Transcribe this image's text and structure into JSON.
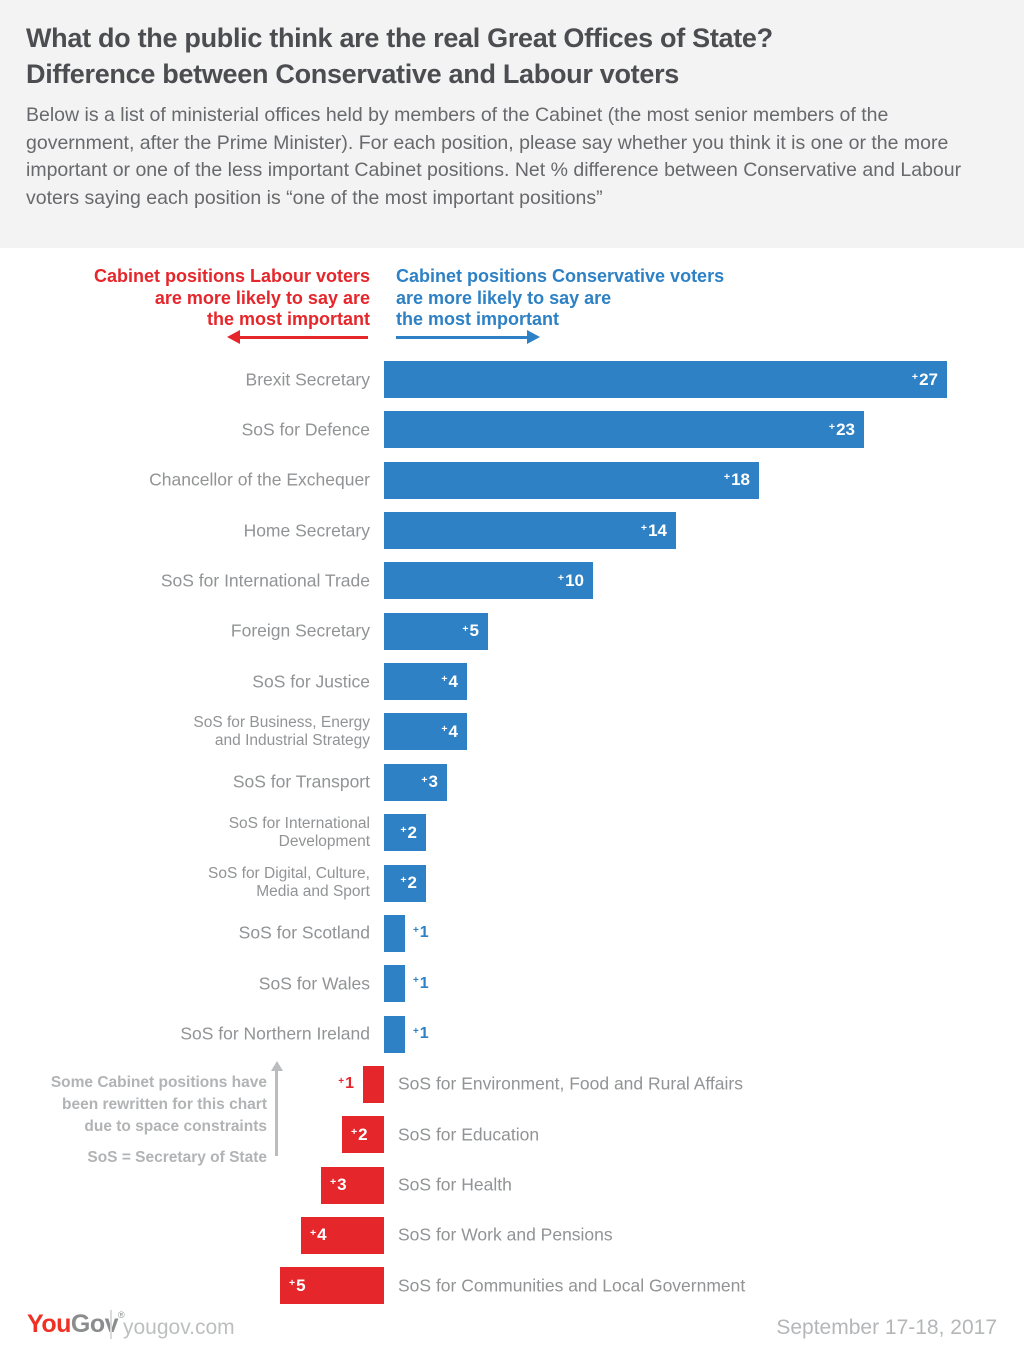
{
  "header": {
    "bg_color": "#f3f3f3",
    "title_lines": [
      "What do the public think are the real Great Offices of State?",
      "Difference between Conservative and Labour voters"
    ],
    "subtitle": "Below is a list of ministerial offices held by members of the Cabinet (the most senior members of the government, after the Prime Minister). For each position, please say whether you think it is one or the more important or one of the less important Cabinet positions. Net % difference between Conservative and Labour voters saying each position is “one of the most important positions”"
  },
  "legend": {
    "labour": {
      "lines": [
        "Cabinet positions Labour voters",
        "are more likely to say are",
        "the most important"
      ],
      "color": "#e5262b",
      "arrow_direction": "left"
    },
    "conservative": {
      "lines": [
        "Cabinet positions Conservative voters",
        "are more likely to say are",
        "the most important"
      ],
      "color": "#2d81c4",
      "arrow_direction": "right"
    }
  },
  "chart_data": {
    "type": "bar",
    "orientation": "horizontal",
    "value_prefix": "+",
    "unit": "net percentage points difference",
    "axis_baseline": 0,
    "xlim": [
      0,
      30
    ],
    "grid": false,
    "series": [
      {
        "name": "Cabinet positions Conservative voters are more likely to say are the most important",
        "color": "#2d81c4",
        "direction": "right",
        "items": [
          {
            "label_lines": [
              "Brexit Secretary"
            ],
            "value": 27
          },
          {
            "label_lines": [
              "SoS for Defence"
            ],
            "value": 23
          },
          {
            "label_lines": [
              "Chancellor of the Exchequer"
            ],
            "value": 18
          },
          {
            "label_lines": [
              "Home Secretary"
            ],
            "value": 14
          },
          {
            "label_lines": [
              "SoS for International Trade"
            ],
            "value": 10
          },
          {
            "label_lines": [
              "Foreign Secretary"
            ],
            "value": 5
          },
          {
            "label_lines": [
              "SoS for Justice"
            ],
            "value": 4
          },
          {
            "label_lines": [
              "SoS for Business, Energy",
              "and Industrial Strategy"
            ],
            "value": 4
          },
          {
            "label_lines": [
              "SoS for Transport"
            ],
            "value": 3
          },
          {
            "label_lines": [
              "SoS for International",
              "Development"
            ],
            "value": 2
          },
          {
            "label_lines": [
              "SoS for Digital, Culture,",
              "Media and Sport"
            ],
            "value": 2
          },
          {
            "label_lines": [
              "SoS for Scotland"
            ],
            "value": 1
          },
          {
            "label_lines": [
              "SoS for Wales"
            ],
            "value": 1
          },
          {
            "label_lines": [
              "SoS for Northern Ireland"
            ],
            "value": 1
          }
        ]
      },
      {
        "name": "Cabinet positions Labour voters are more likely to say are the most important",
        "color": "#e5262b",
        "direction": "left",
        "items": [
          {
            "label_lines": [
              "SoS for Environment, Food and Rural Affairs"
            ],
            "value": 1
          },
          {
            "label_lines": [
              "SoS for Education"
            ],
            "value": 2
          },
          {
            "label_lines": [
              "SoS for Health"
            ],
            "value": 3
          },
          {
            "label_lines": [
              "SoS for Work and Pensions"
            ],
            "value": 4
          },
          {
            "label_lines": [
              "SoS for Communities and Local Government"
            ],
            "value": 5
          }
        ]
      }
    ]
  },
  "note": {
    "lines": [
      "Some Cabinet positions have",
      "been rewritten for this chart",
      "due to space constraints"
    ],
    "footnote": "SoS = Secretary of State"
  },
  "footer": {
    "logo": {
      "part1": "You",
      "part2": "Gov",
      "registered": "®",
      "color_part1": "#ee3124",
      "color_part2": "#8a8c8e"
    },
    "site": "yougov.com",
    "date": "September 17-18, 2017"
  }
}
